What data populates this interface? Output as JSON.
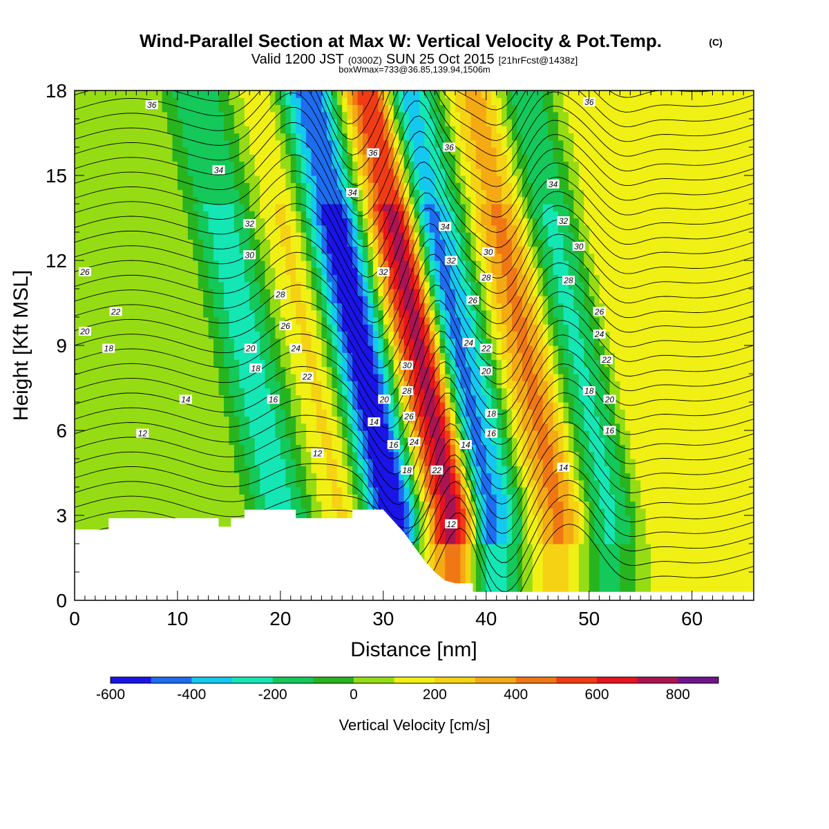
{
  "chart_data": {
    "type": "heatmap",
    "title": "Wind-Parallel Section at Max W: Vertical Velocity & Pot.Temp.",
    "title_mark": "(C)",
    "subtitle_main": "Valid 1200 JST",
    "subtitle_z": "(0300Z)",
    "subtitle_date": "SUN 25 Oct 2015",
    "subtitle_fcst": "[21hrFcst@1438z]",
    "subtitle2": "boxWmax=733@36.85,139.94,1506m",
    "xlabel": "Distance [nm]",
    "ylabel": "Height [Kft MSL]",
    "xlim": [
      0,
      66
    ],
    "ylim": [
      0,
      18
    ],
    "x_ticks": [
      0,
      10,
      20,
      30,
      40,
      50,
      60
    ],
    "y_ticks": [
      0,
      3,
      6,
      9,
      12,
      15,
      18
    ],
    "colorbar": {
      "label": "Vertical Velocity [cm/s]",
      "min": -600,
      "max": 900,
      "tick_values": [
        -600,
        -400,
        -200,
        0,
        200,
        400,
        600,
        800
      ],
      "colors": [
        "#1a14e6",
        "#1e6cf0",
        "#14c8f0",
        "#14e6b4",
        "#14c85a",
        "#28b41e",
        "#96dc14",
        "#f0f014",
        "#f5d214",
        "#f5aa14",
        "#f07814",
        "#f03c14",
        "#e6141e",
        "#aa1450",
        "#6e148c"
      ]
    },
    "velocity_columns": [
      {
        "x": 2,
        "w": 0
      },
      {
        "x": 10.5,
        "w": 60
      },
      {
        "x": 15,
        "w": 80
      },
      {
        "x": 20,
        "w": -250
      },
      {
        "x": 26,
        "w": 210
      },
      {
        "x": 31,
        "w": -600
      },
      {
        "x": 36.8,
        "w": 733
      },
      {
        "x": 40.5,
        "w": -420
      },
      {
        "x": 47,
        "w": 420
      },
      {
        "x": 52,
        "w": -220
      },
      {
        "x": 57,
        "w": 200
      }
    ],
    "terrain_profile": [
      {
        "x": 0,
        "h": 2.5
      },
      {
        "x": 3.3,
        "h": 2.5
      },
      {
        "x": 3.3,
        "h": 2.9
      },
      {
        "x": 14,
        "h": 2.9
      },
      {
        "x": 14,
        "h": 2.6
      },
      {
        "x": 15.2,
        "h": 2.6
      },
      {
        "x": 15.2,
        "h": 2.9
      },
      {
        "x": 16.5,
        "h": 2.9
      },
      {
        "x": 16.5,
        "h": 3.2
      },
      {
        "x": 21.5,
        "h": 3.2
      },
      {
        "x": 21.5,
        "h": 2.9
      },
      {
        "x": 27,
        "h": 2.9
      },
      {
        "x": 27,
        "h": 3.2
      },
      {
        "x": 30,
        "h": 3.2
      },
      {
        "x": 31,
        "h": 2.8
      },
      {
        "x": 32,
        "h": 2.4
      },
      {
        "x": 33,
        "h": 1.9
      },
      {
        "x": 34,
        "h": 1.4
      },
      {
        "x": 35,
        "h": 1.0
      },
      {
        "x": 36,
        "h": 0.7
      },
      {
        "x": 37,
        "h": 0.6
      },
      {
        "x": 38.7,
        "h": 0.6
      },
      {
        "x": 38.7,
        "h": 0.3
      },
      {
        "x": 66,
        "h": 0.3
      }
    ],
    "theta_levels": [
      12,
      14,
      16,
      18,
      20,
      22,
      24,
      26,
      28,
      30,
      32,
      34,
      36
    ],
    "contour_labels": [
      {
        "text": "36",
        "x": 7.5,
        "y": 17.5
      },
      {
        "text": "34",
        "x": 14,
        "y": 15.2
      },
      {
        "text": "32",
        "x": 17,
        "y": 13.3
      },
      {
        "text": "30",
        "x": 17,
        "y": 12.2
      },
      {
        "text": "26",
        "x": 1,
        "y": 11.6
      },
      {
        "text": "22",
        "x": 4,
        "y": 10.2
      },
      {
        "text": "20",
        "x": 1,
        "y": 9.5
      },
      {
        "text": "18",
        "x": 3.3,
        "y": 8.9
      },
      {
        "text": "14",
        "x": 10.8,
        "y": 7.1
      },
      {
        "text": "12",
        "x": 6.6,
        "y": 5.9
      },
      {
        "text": "20",
        "x": 17.1,
        "y": 8.9
      },
      {
        "text": "18",
        "x": 17.6,
        "y": 8.2
      },
      {
        "text": "16",
        "x": 19.3,
        "y": 7.1
      },
      {
        "text": "28",
        "x": 20,
        "y": 10.8
      },
      {
        "text": "26",
        "x": 20.5,
        "y": 9.7
      },
      {
        "text": "24",
        "x": 21.5,
        "y": 8.9
      },
      {
        "text": "22",
        "x": 22.6,
        "y": 7.9
      },
      {
        "text": "12",
        "x": 23.6,
        "y": 5.2
      },
      {
        "text": "34",
        "x": 27,
        "y": 14.4
      },
      {
        "text": "36",
        "x": 29,
        "y": 15.8
      },
      {
        "text": "32",
        "x": 30,
        "y": 11.6
      },
      {
        "text": "30",
        "x": 32.3,
        "y": 8.3
      },
      {
        "text": "28",
        "x": 32.3,
        "y": 7.4
      },
      {
        "text": "26",
        "x": 32.5,
        "y": 6.5
      },
      {
        "text": "24",
        "x": 33,
        "y": 5.6
      },
      {
        "text": "20",
        "x": 30.1,
        "y": 7.1
      },
      {
        "text": "14",
        "x": 29.1,
        "y": 6.3
      },
      {
        "text": "16",
        "x": 31,
        "y": 5.5
      },
      {
        "text": "18",
        "x": 32.3,
        "y": 4.6
      },
      {
        "text": "22",
        "x": 35.2,
        "y": 4.6
      },
      {
        "text": "12",
        "x": 36.6,
        "y": 2.7
      },
      {
        "text": "14",
        "x": 38,
        "y": 5.5
      },
      {
        "text": "36",
        "x": 36.4,
        "y": 16.0
      },
      {
        "text": "34",
        "x": 36,
        "y": 13.2
      },
      {
        "text": "32",
        "x": 36.6,
        "y": 12.0
      },
      {
        "text": "30",
        "x": 40.2,
        "y": 12.3
      },
      {
        "text": "28",
        "x": 40,
        "y": 11.4
      },
      {
        "text": "26",
        "x": 38.7,
        "y": 10.6
      },
      {
        "text": "24",
        "x": 38.3,
        "y": 9.1
      },
      {
        "text": "22",
        "x": 40,
        "y": 8.9
      },
      {
        "text": "20",
        "x": 40,
        "y": 8.1
      },
      {
        "text": "18",
        "x": 40.5,
        "y": 6.6
      },
      {
        "text": "16",
        "x": 40.5,
        "y": 5.9
      },
      {
        "text": "36",
        "x": 50,
        "y": 17.6
      },
      {
        "text": "34",
        "x": 46.5,
        "y": 14.7
      },
      {
        "text": "32",
        "x": 47.5,
        "y": 13.4
      },
      {
        "text": "30",
        "x": 49,
        "y": 12.5
      },
      {
        "text": "28",
        "x": 48,
        "y": 11.3
      },
      {
        "text": "26",
        "x": 51,
        "y": 10.2
      },
      {
        "text": "24",
        "x": 51,
        "y": 9.4
      },
      {
        "text": "22",
        "x": 51.7,
        "y": 8.5
      },
      {
        "text": "18",
        "x": 50,
        "y": 7.4
      },
      {
        "text": "20",
        "x": 52,
        "y": 7.1
      },
      {
        "text": "16",
        "x": 52,
        "y": 6.0
      },
      {
        "text": "14",
        "x": 47.5,
        "y": 4.7
      }
    ]
  }
}
